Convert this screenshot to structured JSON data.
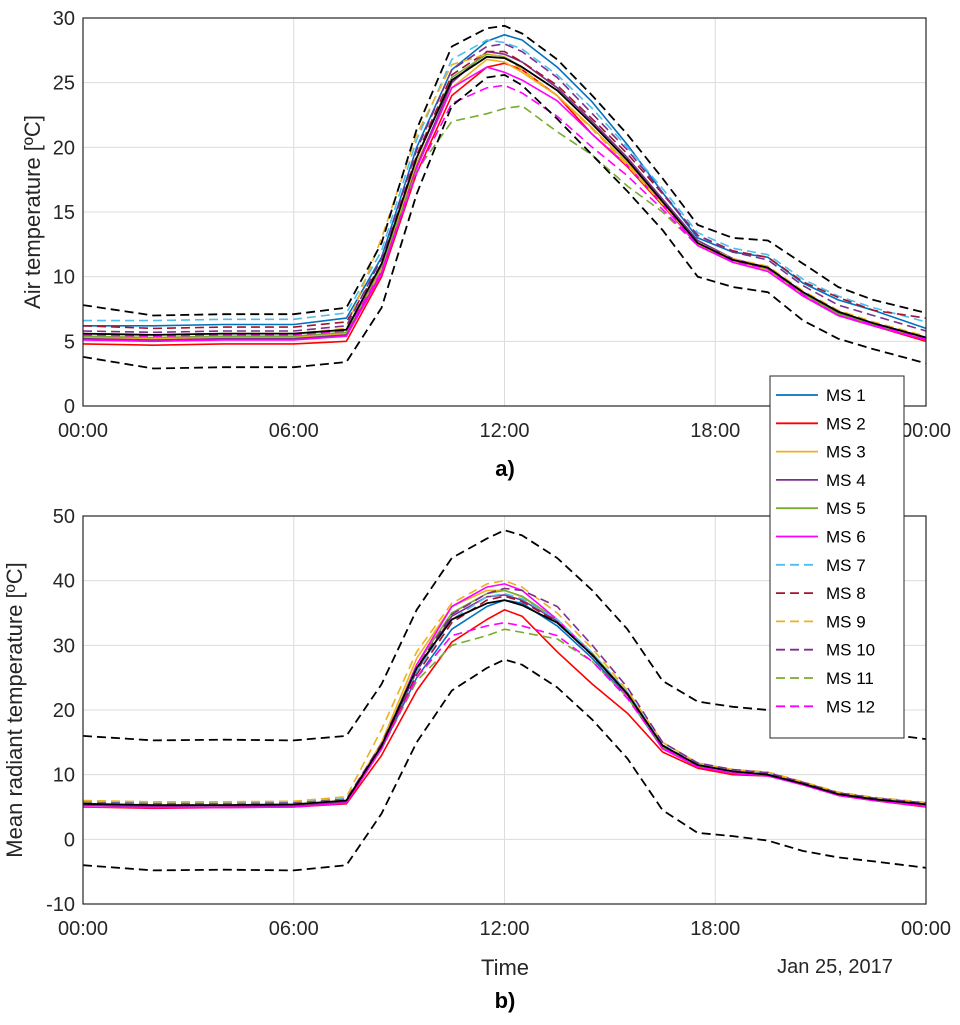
{
  "chart_data": [
    {
      "type": "line",
      "panel_label": "a)",
      "ylabel": "Air temperature [ºC]",
      "xlabel": "",
      "ylim": [
        0,
        30
      ],
      "yticks": [
        0,
        5,
        10,
        15,
        20,
        25,
        30
      ],
      "xlim": [
        0,
        24
      ],
      "x_tick_labels": [
        "00:00",
        "06:00",
        "12:00",
        "18:00",
        "00:00"
      ],
      "grid": true,
      "legend_placement": "bottom-right",
      "x": [
        0,
        2,
        4,
        6,
        7.5,
        8.5,
        9.5,
        10.5,
        11.5,
        12,
        12.5,
        13.5,
        14.5,
        15.5,
        16.5,
        17.5,
        18.5,
        19.5,
        20.5,
        21.5,
        22.5,
        24
      ],
      "series": [
        {
          "name": "MS 1",
          "color": "#0072BD",
          "dash": "solid",
          "values": [
            6.2,
            6.2,
            6.3,
            6.3,
            6.8,
            11.5,
            20,
            26,
            28.2,
            28.7,
            28.3,
            26.2,
            23.5,
            20.2,
            16.5,
            13,
            11.9,
            11.5,
            9.5,
            8.2,
            7.4,
            6
          ]
        },
        {
          "name": "MS 2",
          "color": "#FF0000",
          "dash": "solid",
          "values": [
            4.8,
            4.7,
            4.8,
            4.8,
            5,
            10,
            18,
            24,
            26.2,
            26.5,
            26,
            24,
            21,
            18.5,
            15.5,
            12.5,
            11.2,
            10.5,
            8.5,
            7,
            6.2,
            5
          ]
        },
        {
          "name": "MS 3",
          "color": "#EDB120",
          "dash": "solid",
          "values": [
            5.3,
            5.2,
            5.3,
            5.3,
            5.6,
            10.6,
            18.8,
            24.6,
            26.8,
            26.6,
            25.8,
            24,
            21.5,
            18.8,
            15.8,
            12.5,
            11.2,
            10.5,
            8.6,
            7,
            6.3,
            5.1
          ]
        },
        {
          "name": "MS 4",
          "color": "#7E2F8E",
          "dash": "solid",
          "values": [
            5.2,
            5.1,
            5.2,
            5.2,
            5.5,
            10.3,
            18.5,
            25,
            27.4,
            27.2,
            26.6,
            24.6,
            22,
            19.2,
            16,
            12.8,
            11.4,
            10.7,
            8.8,
            7.2,
            6.4,
            5.3
          ]
        },
        {
          "name": "MS 5",
          "color": "#77AC30",
          "dash": "solid",
          "values": [
            5.4,
            5.3,
            5.4,
            5.4,
            5.7,
            10.8,
            19.2,
            25.4,
            27.2,
            27,
            26.2,
            24.4,
            21.8,
            19,
            15.8,
            12.6,
            11.3,
            10.6,
            8.7,
            7.1,
            6.3,
            5.2
          ]
        },
        {
          "name": "MS 6",
          "color": "#FF00FF",
          "dash": "solid",
          "values": [
            5.1,
            5,
            5.1,
            5.1,
            5.4,
            10.2,
            18.4,
            24.6,
            26.2,
            25.8,
            25.2,
            23.6,
            21,
            18.6,
            15.6,
            12.4,
            11.1,
            10.4,
            8.5,
            7,
            6.2,
            5.1
          ]
        },
        {
          "name": "MS 7",
          "color": "#4DBEEE",
          "dash": "dashed",
          "values": [
            6.6,
            6.6,
            6.7,
            6.7,
            7.2,
            12,
            20.6,
            26.8,
            28.3,
            28.1,
            27.6,
            25.6,
            23,
            20,
            16.8,
            13.4,
            12.2,
            11.7,
            9.8,
            8.5,
            7.6,
            6.5
          ]
        },
        {
          "name": "MS 8",
          "color": "#A2142F",
          "dash": "dashed",
          "values": [
            6.2,
            6,
            6.1,
            6.1,
            6.5,
            11,
            19.4,
            25.6,
            27.4,
            27.4,
            26.6,
            24.8,
            22.2,
            19.5,
            16.4,
            13.2,
            12,
            11.5,
            9.6,
            8.4,
            7.4,
            6.8
          ]
        },
        {
          "name": "MS 9",
          "color": "#EDB120",
          "dash": "dashed",
          "values": [
            5.6,
            5.5,
            5.6,
            5.6,
            6,
            13,
            21,
            26.4,
            27.2,
            27,
            26,
            24,
            21.4,
            18.6,
            15.6,
            12.6,
            11.4,
            10.8,
            8.9,
            7.4,
            6.5,
            5.4
          ]
        },
        {
          "name": "MS 10",
          "color": "#7E2F8E",
          "dash": "dashed",
          "values": [
            5.8,
            5.7,
            5.8,
            5.8,
            6.2,
            11.4,
            19.8,
            26,
            27.8,
            28,
            27.4,
            25.4,
            22.6,
            19.8,
            16.5,
            13.2,
            11.9,
            11.3,
            9.3,
            7.8,
            7,
            5.8
          ]
        },
        {
          "name": "MS 11",
          "color": "#77AC30",
          "dash": "dashed",
          "values": [
            5.5,
            5.4,
            5.5,
            5.5,
            5.8,
            10.8,
            18.2,
            22,
            22.6,
            23,
            23.2,
            21.2,
            19.4,
            17,
            15,
            12.4,
            11.2,
            10.6,
            8.7,
            7.1,
            6.3,
            5.2
          ]
        },
        {
          "name": "MS 12",
          "color": "#FF00FF",
          "dash": "dashed",
          "values": [
            5.5,
            5.4,
            5.5,
            5.5,
            5.8,
            10.4,
            18,
            23.4,
            24.6,
            24.8,
            24.2,
            22.4,
            20,
            17.8,
            15.2,
            12.4,
            11.2,
            10.6,
            8.6,
            7,
            6.3,
            5.2
          ]
        },
        {
          "name": "",
          "color": "#000000",
          "dash": "solid",
          "values": [
            5.6,
            5.5,
            5.6,
            5.6,
            5.9,
            11,
            19.2,
            25.2,
            27,
            26.9,
            26.2,
            24.4,
            21.8,
            19,
            15.8,
            12.6,
            11.3,
            10.7,
            8.8,
            7.3,
            6.4,
            5.3
          ]
        },
        {
          "name": "",
          "color": "#000000",
          "dash": "dashed",
          "values": [
            7.8,
            7,
            7.1,
            7.1,
            7.6,
            12.6,
            21.4,
            27.8,
            29.2,
            29.4,
            28.8,
            26.8,
            24,
            21,
            17.6,
            14,
            13,
            12.8,
            11,
            9.2,
            8.2,
            7.2
          ]
        },
        {
          "name": "",
          "color": "#000000",
          "dash": "dashed",
          "values": [
            3.8,
            2.9,
            3,
            3,
            3.4,
            7.6,
            16.4,
            23.2,
            25.4,
            25.6,
            24.8,
            22.2,
            19.4,
            16.6,
            13.6,
            10,
            9.2,
            8.8,
            6.6,
            5.2,
            4.4,
            3.3
          ]
        }
      ]
    },
    {
      "type": "line",
      "panel_label": "b)",
      "ylabel": "Mean radiant temperature [ºC]",
      "xlabel": "Time",
      "date_label": "Jan 25, 2017",
      "ylim": [
        -10,
        50
      ],
      "yticks": [
        -10,
        0,
        10,
        20,
        30,
        40,
        50
      ],
      "xlim": [
        0,
        24
      ],
      "x_tick_labels": [
        "00:00",
        "06:00",
        "12:00",
        "18:00",
        "00:00"
      ],
      "grid": true,
      "x": [
        0,
        2,
        4,
        6,
        7.5,
        8.5,
        9.5,
        10.5,
        11.5,
        12,
        12.5,
        13.5,
        14.5,
        15.5,
        16.5,
        17.5,
        18.5,
        19.5,
        20.5,
        21.5,
        22.5,
        24
      ],
      "series": [
        {
          "name": "MS 1",
          "color": "#0072BD",
          "dash": "solid",
          "values": [
            5.5,
            5.2,
            5.3,
            5.3,
            6,
            14,
            25,
            32.5,
            36,
            37,
            36.5,
            33,
            28,
            22,
            14,
            11.5,
            10.5,
            10,
            8.5,
            7,
            6.2,
            5.5
          ]
        },
        {
          "name": "MS 2",
          "color": "#FF0000",
          "dash": "solid",
          "values": [
            5,
            4.8,
            4.9,
            5,
            5.5,
            13,
            23,
            30.5,
            34,
            35.5,
            34.5,
            29,
            24,
            19.5,
            13.5,
            11,
            10,
            9.8,
            8.5,
            6.8,
            6,
            5
          ]
        },
        {
          "name": "MS 3",
          "color": "#EDB120",
          "dash": "solid",
          "values": [
            5.4,
            5.2,
            5.2,
            5.3,
            6,
            15,
            28,
            36,
            38.5,
            38.5,
            37.5,
            34,
            28.5,
            22.5,
            14.5,
            11.5,
            10.5,
            10,
            8.6,
            7,
            6.2,
            5.3
          ]
        },
        {
          "name": "MS 4",
          "color": "#7E2F8E",
          "dash": "solid",
          "values": [
            5.3,
            5.1,
            5.2,
            5.2,
            5.8,
            14,
            26,
            34.5,
            37.5,
            37.8,
            37,
            33.8,
            28.5,
            22.5,
            14.3,
            11.3,
            10.3,
            9.9,
            8.5,
            6.9,
            6.1,
            5.2
          ]
        },
        {
          "name": "MS 5",
          "color": "#77AC30",
          "dash": "solid",
          "values": [
            5.5,
            5.3,
            5.3,
            5.4,
            6,
            14.5,
            27,
            35,
            38,
            38.5,
            37.6,
            34,
            28.8,
            22.6,
            14.4,
            11.4,
            10.4,
            10,
            8.6,
            7,
            6.2,
            5.3
          ]
        },
        {
          "name": "MS 6",
          "color": "#FF00FF",
          "dash": "solid",
          "values": [
            5,
            4.9,
            4.9,
            5,
            5.6,
            14,
            27,
            36,
            39,
            39.5,
            38.5,
            34,
            28.5,
            22.3,
            14,
            11.2,
            10.2,
            9.8,
            8.4,
            6.8,
            6,
            5.1
          ]
        },
        {
          "name": "MS 7",
          "color": "#4DBEEE",
          "dash": "dashed",
          "values": [
            5.8,
            5.6,
            5.6,
            5.7,
            6.3,
            14.5,
            26,
            34,
            37.5,
            38,
            37.2,
            34,
            28.8,
            22.8,
            14.6,
            11.6,
            10.6,
            10.2,
            8.8,
            7.2,
            6.4,
            5.6
          ]
        },
        {
          "name": "MS 8",
          "color": "#A2142F",
          "dash": "dashed",
          "values": [
            5.6,
            5.4,
            5.4,
            5.5,
            6.1,
            14.2,
            25.5,
            33.5,
            37,
            37.6,
            36.8,
            33.6,
            28.4,
            22.4,
            14.4,
            11.5,
            10.5,
            10.1,
            8.7,
            7.1,
            6.3,
            5.5
          ]
        },
        {
          "name": "MS 9",
          "color": "#EDB120",
          "dash": "dashed",
          "values": [
            6,
            5.8,
            5.8,
            5.9,
            6.6,
            17,
            29,
            36.5,
            39.5,
            40,
            39,
            35,
            29.5,
            23,
            15,
            11.8,
            10.8,
            10.4,
            8.9,
            7.3,
            6.5,
            5.7
          ]
        },
        {
          "name": "MS 10",
          "color": "#7E2F8E",
          "dash": "dashed",
          "values": [
            5.7,
            5.5,
            5.5,
            5.6,
            6.2,
            14.8,
            26.5,
            34.8,
            38,
            38.8,
            38.5,
            36,
            30,
            23.5,
            15,
            11.8,
            10.8,
            10.3,
            8.8,
            7.2,
            6.4,
            5.6
          ]
        },
        {
          "name": "MS 11",
          "color": "#77AC30",
          "dash": "dashed",
          "values": [
            5.6,
            5.4,
            5.4,
            5.5,
            6.1,
            14,
            24.5,
            30,
            31.5,
            32.5,
            32,
            31,
            27.5,
            22,
            14.3,
            11.4,
            10.4,
            10,
            8.6,
            7,
            6.2,
            5.4
          ]
        },
        {
          "name": "MS 12",
          "color": "#FF00FF",
          "dash": "dashed",
          "values": [
            5.5,
            5.3,
            5.3,
            5.4,
            6,
            14,
            25,
            31.5,
            33,
            33.5,
            33,
            31.5,
            27.5,
            21.8,
            14.2,
            11.3,
            10.3,
            9.9,
            8.5,
            6.9,
            6.1,
            5.3
          ]
        },
        {
          "name": "",
          "color": "#000000",
          "dash": "solid",
          "values": [
            5.5,
            5.3,
            5.3,
            5.4,
            6,
            14.5,
            26.5,
            34,
            36.5,
            37,
            36.2,
            33.5,
            28.5,
            22.5,
            14.5,
            11.5,
            10.5,
            10,
            8.6,
            7,
            6.2,
            5.4
          ]
        },
        {
          "name": "",
          "color": "#000000",
          "dash": "dashed",
          "values": [
            16,
            15.3,
            15.4,
            15.3,
            16,
            24,
            35.5,
            43.5,
            46.5,
            47.8,
            47,
            43.5,
            38.5,
            32.5,
            24.5,
            21.3,
            20.5,
            20,
            19,
            17.5,
            16.5,
            15.5
          ]
        },
        {
          "name": "",
          "color": "#000000",
          "dash": "dashed",
          "values": [
            -4,
            -4.8,
            -4.7,
            -4.8,
            -4,
            4,
            15,
            23,
            26.5,
            27.8,
            27,
            23.5,
            18.5,
            12.5,
            4.5,
            1,
            0.5,
            -0.2,
            -1.8,
            -2.8,
            -3.4,
            -4.4
          ]
        }
      ]
    }
  ]
}
